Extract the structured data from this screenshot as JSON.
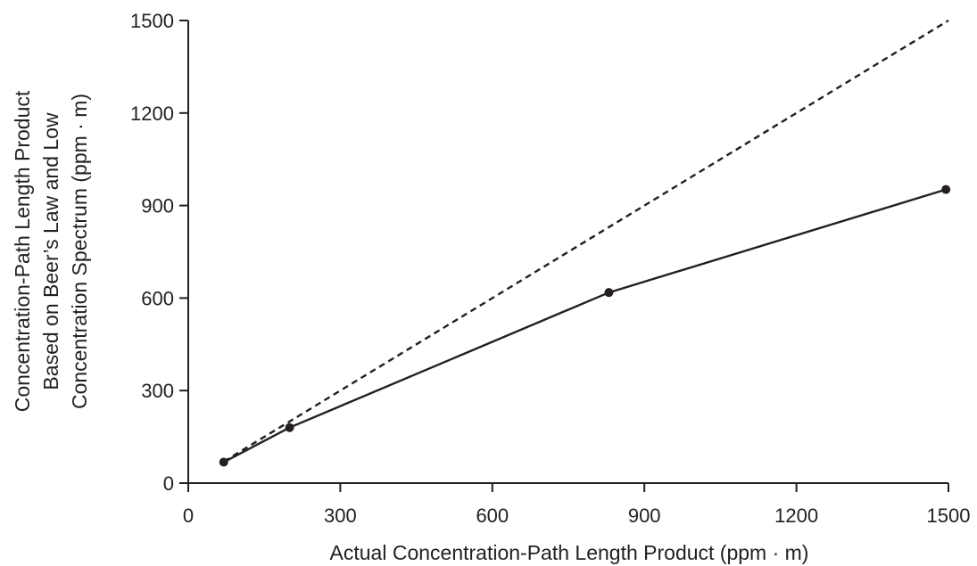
{
  "chart_data": {
    "type": "line",
    "title": "",
    "xlabel": "Actual Concentration-Path Length Product (ppm · m)",
    "ylabel_lines": [
      "Concentration-Path Length Product",
      "Based on Beer’s Law and Low",
      "Concentration Spectrum (ppm · m)"
    ],
    "xlim": [
      0,
      1500
    ],
    "ylim": [
      0,
      1500
    ],
    "x_ticks": [
      0,
      300,
      600,
      900,
      1200,
      1500
    ],
    "y_ticks": [
      0,
      300,
      600,
      900,
      1200,
      1500
    ],
    "grid": false,
    "legend": "none",
    "series": [
      {
        "style": "solid-with-markers",
        "color": "#231f20",
        "x": [
          70,
          200,
          830,
          1495
        ],
        "y": [
          68,
          180,
          618,
          952
        ]
      },
      {
        "style": "dashed",
        "color": "#231f20",
        "x": [
          70,
          1500
        ],
        "y": [
          70,
          1500
        ]
      }
    ]
  }
}
